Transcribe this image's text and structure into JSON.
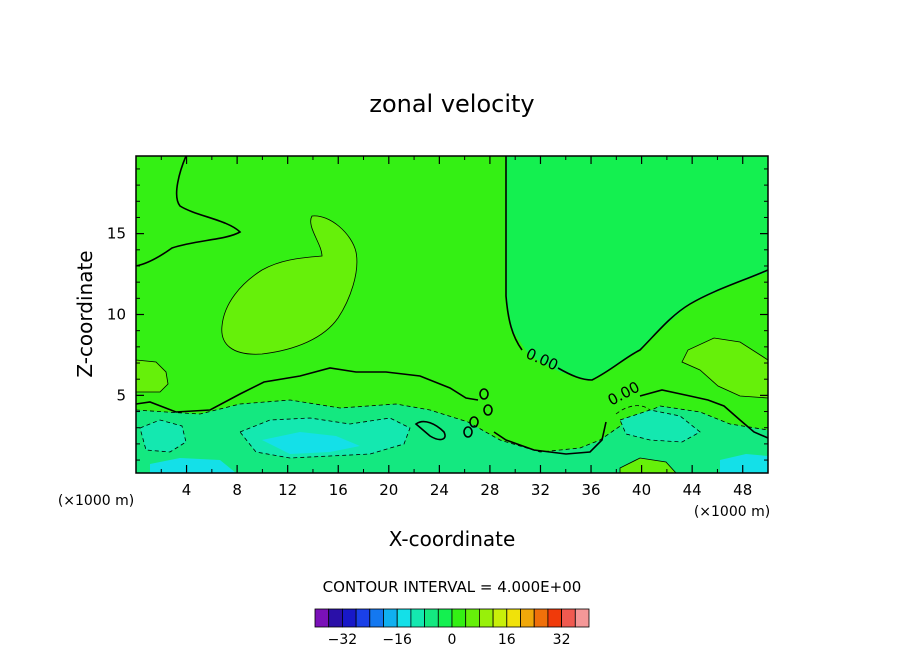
{
  "chart_data": {
    "type": "contour",
    "title": "zonal velocity",
    "xlabel": "X-coordinate",
    "ylabel": "Z-coordinate",
    "x_unit": "(×1000 m)",
    "y_unit": "(×1000 m)",
    "xlim": [
      0,
      50
    ],
    "ylim": [
      0.2,
      19.8
    ],
    "x_ticks": [
      4,
      8,
      12,
      16,
      20,
      24,
      28,
      32,
      36,
      40,
      44,
      48
    ],
    "y_ticks": [
      5,
      10,
      15
    ],
    "contour_interval_text": "CONTOUR INTERVAL = 4.000E+00",
    "contour_labels": [
      "0.00",
      "0.00"
    ],
    "colorbar": {
      "levels": [
        -36,
        -32,
        -28,
        -24,
        -20,
        -16,
        -12,
        -8,
        -4,
        0,
        4,
        8,
        12,
        16,
        20,
        24,
        28,
        32,
        36
      ],
      "colors": [
        "#7a10b8",
        "#2a10a8",
        "#1818c8",
        "#1a40e8",
        "#1478f0",
        "#10b0f0",
        "#14e0e8",
        "#14e8b0",
        "#14e880",
        "#14f050",
        "#34f014",
        "#66f00a",
        "#98f00a",
        "#c8f00a",
        "#f0e20a",
        "#f0a80a",
        "#f0700a",
        "#f03a0a",
        "#f05a50",
        "#f49898"
      ],
      "tick_values": [
        "-32",
        "-16",
        "0",
        "16",
        "32"
      ]
    },
    "colors": {
      "background_green": "#34f014",
      "region_near_zero_positive": "#14f050",
      "region_positive": "#66f00a",
      "region_negative": "#14e880",
      "region_strong_negative": "#14e8b0",
      "region_very_negative": "#14e0e8"
    }
  }
}
